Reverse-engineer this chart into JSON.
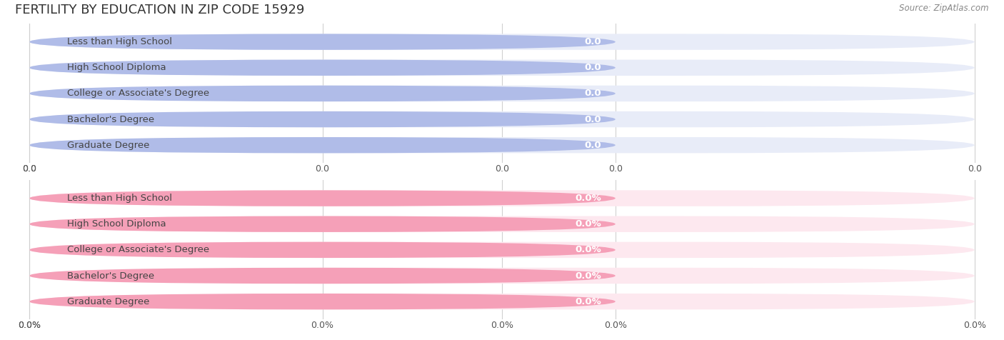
{
  "title": "FERTILITY BY EDUCATION IN ZIP CODE 15929",
  "source": "Source: ZipAtlas.com",
  "categories": [
    "Less than High School",
    "High School Diploma",
    "College or Associate's Degree",
    "Bachelor's Degree",
    "Graduate Degree"
  ],
  "top_values": [
    0.0,
    0.0,
    0.0,
    0.0,
    0.0
  ],
  "bottom_values": [
    0.0,
    0.0,
    0.0,
    0.0,
    0.0
  ],
  "top_bar_color": "#b0bce8",
  "top_bar_bg": "#e8ecf8",
  "bottom_bar_color": "#f5a0b8",
  "bottom_bar_bg": "#fde8ef",
  "bar_text_color": "#444444",
  "title_color": "#333333",
  "bg_color": "#ffffff",
  "source_color": "#888888",
  "bar_fill_ratio": 0.62,
  "bar_min_fill": 0.62,
  "value_label_color": "#ffffff"
}
